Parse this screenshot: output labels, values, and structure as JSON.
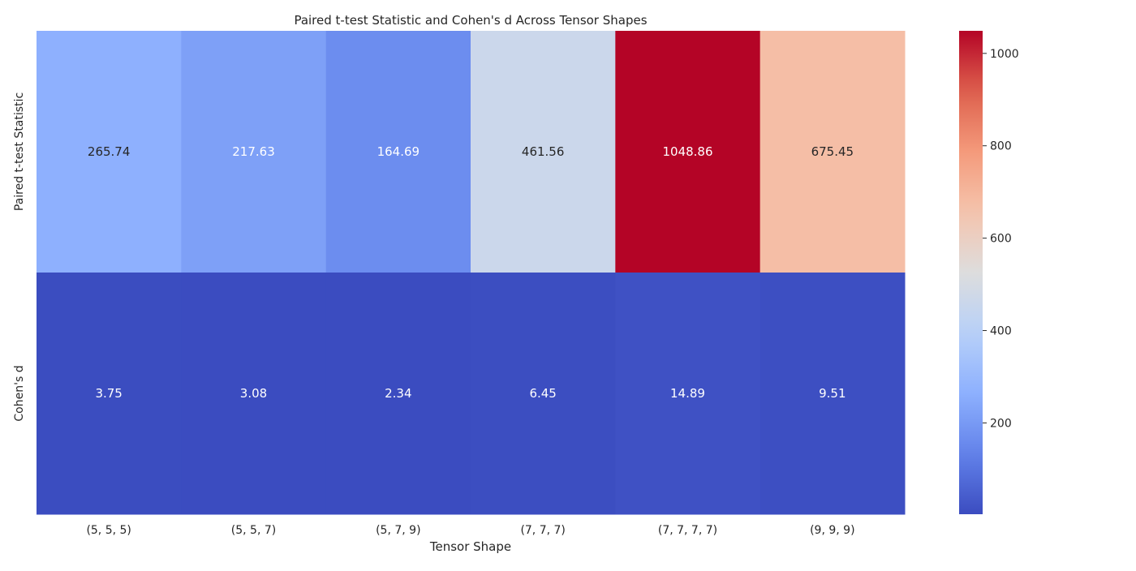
{
  "chart_data": {
    "type": "heatmap",
    "title": "Paired t-test Statistic and Cohen's d Across Tensor Shapes",
    "xlabel": "Tensor Shape",
    "ylabel": "",
    "x_categories": [
      "(5, 5, 5)",
      "(5, 5, 7)",
      "(5, 7, 9)",
      "(7, 7, 7)",
      "(7, 7, 7, 7)",
      "(9, 9, 9)"
    ],
    "y_categories": [
      "Paired t-test Statistic",
      "Cohen's d"
    ],
    "values": [
      [
        265.74,
        217.63,
        164.69,
        461.56,
        1048.86,
        675.45
      ],
      [
        3.75,
        3.08,
        2.34,
        6.45,
        14.89,
        9.51
      ]
    ],
    "value_labels": [
      [
        "265.74",
        "217.63",
        "164.69",
        "461.56",
        "1048.86",
        "675.45"
      ],
      [
        "3.75",
        "3.08",
        "2.34",
        "6.45",
        "14.89",
        "9.51"
      ]
    ],
    "colormap": "coolwarm",
    "color_range": [
      2.34,
      1048.86
    ],
    "colorbar_ticks": [
      200,
      400,
      600,
      800,
      1000
    ],
    "colorbar_tick_labels": [
      "200",
      "400",
      "600",
      "800",
      "1000"
    ]
  }
}
